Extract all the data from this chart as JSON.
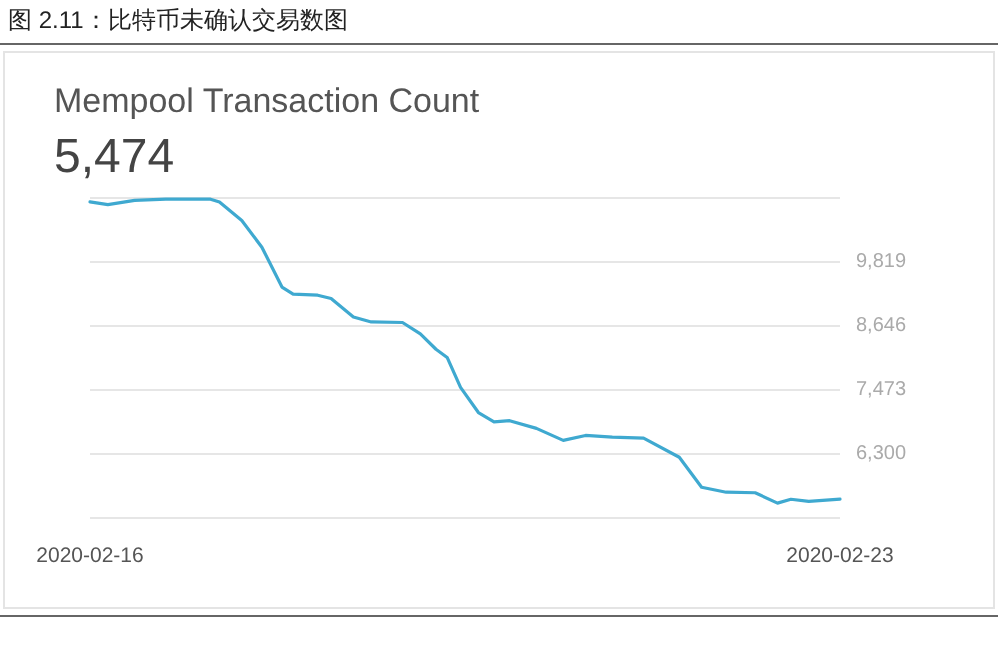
{
  "chart_data": {
    "type": "line",
    "title": "图 2.11：比特币未确认交易数图",
    "subtitle": "Mempool Transaction Count",
    "annotations": [
      "5,474"
    ],
    "series": [
      {
        "color": "#3fa9d0",
        "x": [
          "2020-02-16T00:00",
          "2020-02-16T04:00",
          "2020-02-16T10:00",
          "2020-02-16T17:00",
          "2020-02-17T03:00",
          "2020-02-17T05:00",
          "2020-02-17T10:00",
          "2020-02-17T14:30",
          "2020-02-17T19:00",
          "2020-02-17T21:30",
          "2020-02-18T03:00",
          "2020-02-18T06:00",
          "2020-02-18T11:00",
          "2020-02-18T15:00",
          "2020-02-18T22:00",
          "2020-02-19T02:00",
          "2020-02-19T05:30",
          "2020-02-19T08:00",
          "2020-02-19T11:00",
          "2020-02-19T15:00",
          "2020-02-19T18:30",
          "2020-02-19T22:00",
          "2020-02-20T04:00",
          "2020-02-20T10:00",
          "2020-02-20T15:00",
          "2020-02-20T21:00",
          "2020-02-21T04:00",
          "2020-02-21T12:00",
          "2020-02-21T17:00",
          "2020-02-21T22:30",
          "2020-02-22T05:00",
          "2020-02-22T10:00",
          "2020-02-22T13:00",
          "2020-02-22T17:00",
          "2020-02-23T00:00"
        ],
        "values": [
          10920,
          10870,
          10950,
          10970,
          10970,
          10920,
          10580,
          10090,
          9360,
          9230,
          9210,
          9150,
          8810,
          8720,
          8710,
          8500,
          8220,
          8070,
          7520,
          7060,
          6890,
          6910,
          6770,
          6550,
          6640,
          6610,
          6590,
          6240,
          5690,
          5600,
          5590,
          5400,
          5470,
          5430,
          5474
        ]
      }
    ],
    "xlim": [
      "2020-02-16",
      "2020-02-23"
    ],
    "xticks": [
      {
        "value": "2020-02-16",
        "label": "2020-02-16"
      },
      {
        "value": "2020-02-23",
        "label": "2020-02-23"
      }
    ],
    "ylim": [
      5127,
      10992
    ],
    "yticks": [
      {
        "value": 5127,
        "label": null
      },
      {
        "value": 6300,
        "label": "6,300"
      },
      {
        "value": 7473,
        "label": "7,473"
      },
      {
        "value": 8646,
        "label": "8,646"
      },
      {
        "value": 9819,
        "label": "9,819"
      },
      {
        "value": 10992,
        "label": null
      }
    ],
    "grid": "y",
    "marker": "none",
    "line_style": "solid"
  }
}
